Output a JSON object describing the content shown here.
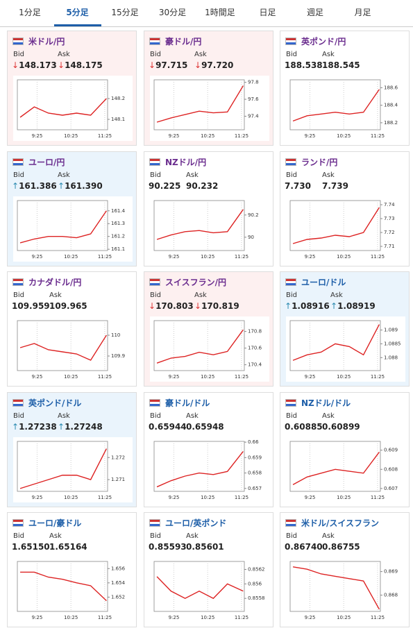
{
  "tabs": {
    "items": [
      "1分足",
      "5分足",
      "15分足",
      "30分足",
      "1時間足",
      "日足",
      "週足",
      "月足"
    ],
    "selected": 1
  },
  "cards": [
    {
      "name": "米ドル/円",
      "bid_label": "Bid",
      "ask_label": "Ask",
      "arrow": "↓",
      "bid": "148.173",
      "ask": "148.175",
      "chart": {
        "type": "line",
        "x": [
          -5,
          20,
          45,
          70,
          95,
          120,
          148
        ],
        "values": [
          148.11,
          148.16,
          148.13,
          148.12,
          148.13,
          148.12,
          148.2
        ],
        "xlim": [
          -10,
          150
        ],
        "ylim": [
          148.05,
          148.29
        ],
        "yticks": [
          148.1,
          148.2
        ],
        "xticks": [
          {
            "value": 25,
            "label": "9:25"
          },
          {
            "value": 85,
            "label": "10:25"
          },
          {
            "value": 145,
            "label": "11:25"
          }
        ]
      }
    },
    {
      "name": "豪ドル/円",
      "bid_label": "Bid",
      "ask_label": "Ask",
      "arrow": "↓",
      "bid": "97.715",
      "ask": "97.720",
      "chart": {
        "type": "line",
        "x": [
          -5,
          20,
          45,
          70,
          95,
          120,
          148
        ],
        "values": [
          97.33,
          97.38,
          97.42,
          97.46,
          97.44,
          97.45,
          97.76
        ],
        "xlim": [
          -10,
          150
        ],
        "ylim": [
          97.24,
          97.83
        ],
        "yticks": [
          97.4,
          97.6,
          97.8
        ],
        "xticks": [
          {
            "value": 25,
            "label": "9:25"
          },
          {
            "value": 85,
            "label": "10:25"
          },
          {
            "value": 145,
            "label": "11:25"
          }
        ]
      }
    },
    {
      "name": "英ポンド/円",
      "bid_label": "Bid",
      "ask_label": "Ask",
      "bid": "188.538",
      "ask": "188.545",
      "chart": {
        "type": "line",
        "x": [
          -5,
          20,
          45,
          70,
          95,
          120,
          148
        ],
        "values": [
          188.22,
          188.28,
          188.3,
          188.32,
          188.3,
          188.32,
          188.58
        ],
        "xlim": [
          -10,
          150
        ],
        "ylim": [
          188.12,
          188.69
        ],
        "yticks": [
          188.2,
          188.4,
          188.6
        ],
        "xticks": [
          {
            "value": 25,
            "label": "9:25"
          },
          {
            "value": 85,
            "label": "10:25"
          },
          {
            "value": 145,
            "label": "11:25"
          }
        ]
      }
    },
    {
      "name": "ユーロ/円",
      "bid_label": "Bid",
      "ask_label": "Ask",
      "arrow": "↑",
      "bid": "161.386",
      "ask": "161.390",
      "chart": {
        "type": "line",
        "x": [
          -5,
          20,
          45,
          70,
          95,
          120,
          148
        ],
        "values": [
          161.15,
          161.18,
          161.2,
          161.2,
          161.19,
          161.22,
          161.4
        ],
        "xlim": [
          -10,
          150
        ],
        "ylim": [
          161.09,
          161.48
        ],
        "yticks": [
          161.1,
          161.2,
          161.3,
          161.4
        ],
        "xticks": [
          {
            "value": 25,
            "label": "9:25"
          },
          {
            "value": 85,
            "label": "10:25"
          },
          {
            "value": 145,
            "label": "11:25"
          }
        ]
      }
    },
    {
      "name": "NZドル/円",
      "bid_label": "Bid",
      "ask_label": "Ask",
      "bid": "90.225",
      "ask": "90.232",
      "chart": {
        "type": "line",
        "x": [
          -5,
          20,
          45,
          70,
          95,
          120,
          148
        ],
        "values": [
          89.98,
          90.02,
          90.05,
          90.06,
          90.04,
          90.05,
          90.25
        ],
        "xlim": [
          -10,
          150
        ],
        "ylim": [
          89.88,
          90.33
        ],
        "yticks": [
          90,
          90.2
        ],
        "xticks": [
          {
            "value": 25,
            "label": "9:25"
          },
          {
            "value": 85,
            "label": "10:25"
          },
          {
            "value": 145,
            "label": "11:25"
          }
        ]
      }
    },
    {
      "name": "ランド/円",
      "bid_label": "Bid",
      "ask_label": "Ask",
      "bid": "7.730",
      "ask": "7.739",
      "chart": {
        "type": "line",
        "x": [
          -5,
          20,
          45,
          70,
          95,
          120,
          148
        ],
        "values": [
          7.712,
          7.715,
          7.716,
          7.718,
          7.717,
          7.72,
          7.738
        ],
        "xlim": [
          -10,
          150
        ],
        "ylim": [
          7.707,
          7.743
        ],
        "yticks": [
          7.71,
          7.72,
          7.73,
          7.74
        ],
        "xticks": [
          {
            "value": 25,
            "label": "9:25"
          },
          {
            "value": 85,
            "label": "10:25"
          },
          {
            "value": 145,
            "label": "11:25"
          }
        ]
      }
    },
    {
      "name": "カナダドル/円",
      "bid_label": "Bid",
      "ask_label": "Ask",
      "bid": "109.959",
      "ask": "109.965",
      "chart": {
        "type": "line",
        "x": [
          -5,
          20,
          45,
          70,
          95,
          120,
          148
        ],
        "values": [
          109.94,
          109.96,
          109.93,
          109.92,
          109.91,
          109.88,
          110.0
        ],
        "xlim": [
          -10,
          150
        ],
        "ylim": [
          109.83,
          110.07
        ],
        "yticks": [
          109.9,
          110
        ],
        "xticks": [
          {
            "value": 25,
            "label": "9:25"
          },
          {
            "value": 85,
            "label": "10:25"
          },
          {
            "value": 145,
            "label": "11:25"
          }
        ]
      }
    },
    {
      "name": "スイスフラン/円",
      "bid_label": "Bid",
      "ask_label": "Ask",
      "arrow": "↓",
      "bid": "170.803",
      "ask": "170.819",
      "chart": {
        "type": "line",
        "x": [
          -5,
          20,
          45,
          70,
          95,
          120,
          148
        ],
        "values": [
          170.42,
          170.48,
          170.5,
          170.55,
          170.52,
          170.56,
          170.82
        ],
        "xlim": [
          -10,
          150
        ],
        "ylim": [
          170.33,
          170.93
        ],
        "yticks": [
          170.4,
          170.6,
          170.8
        ],
        "xticks": [
          {
            "value": 25,
            "label": "9:25"
          },
          {
            "value": 85,
            "label": "10:25"
          },
          {
            "value": 145,
            "label": "11:25"
          }
        ]
      }
    },
    {
      "name": "ユーロ/ドル",
      "bid_label": "Bid",
      "ask_label": "Ask",
      "arrow": "↑",
      "bid": "1.08916",
      "ask": "1.08919",
      "chart": {
        "type": "line",
        "x": [
          -5,
          20,
          45,
          70,
          95,
          120,
          148
        ],
        "values": [
          1.0879,
          1.0881,
          1.0882,
          1.0885,
          1.0884,
          1.0881,
          1.0892
        ],
        "xlim": [
          -10,
          150
        ],
        "ylim": [
          1.08753,
          1.08934
        ],
        "yticks": [
          1.088,
          1.0885,
          1.089
        ],
        "xticks": [
          {
            "value": 25,
            "label": "9:25"
          },
          {
            "value": 85,
            "label": "10:25"
          },
          {
            "value": 145,
            "label": "11:25"
          }
        ]
      }
    },
    {
      "name": "英ポンド/ドル",
      "bid_label": "Bid",
      "ask_label": "Ask",
      "arrow": "↑",
      "bid": "1.27238",
      "ask": "1.27248",
      "chart": {
        "type": "line",
        "x": [
          -5,
          20,
          45,
          70,
          95,
          120,
          148
        ],
        "values": [
          1.2706,
          1.2708,
          1.271,
          1.2712,
          1.2712,
          1.271,
          1.2724
        ],
        "xlim": [
          -10,
          150
        ],
        "ylim": [
          1.27047,
          1.27273
        ],
        "yticks": [
          1.271,
          1.272
        ],
        "xticks": [
          {
            "value": 25,
            "label": "9:25"
          },
          {
            "value": 85,
            "label": "10:25"
          },
          {
            "value": 145,
            "label": "11:25"
          }
        ]
      }
    },
    {
      "name": "豪ドル/ドル",
      "bid_label": "Bid",
      "ask_label": "Ask",
      "bid": "0.65944",
      "ask": "0.65948",
      "chart": {
        "type": "line",
        "x": [
          -5,
          20,
          45,
          70,
          95,
          120,
          148
        ],
        "values": [
          0.6571,
          0.6575,
          0.6578,
          0.658,
          0.6579,
          0.6581,
          0.6594
        ],
        "xlim": [
          -10,
          150
        ],
        "ylim": [
          0.65681,
          0.66005
        ],
        "yticks": [
          0.657,
          0.658,
          0.659,
          0.66
        ],
        "xticks": [
          {
            "value": 25,
            "label": "9:25"
          },
          {
            "value": 85,
            "label": "10:25"
          },
          {
            "value": 145,
            "label": "11:25"
          }
        ]
      }
    },
    {
      "name": "NZドル/ドル",
      "bid_label": "Bid",
      "ask_label": "Ask",
      "bid": "0.60885",
      "ask": "0.60899",
      "chart": {
        "type": "line",
        "x": [
          -5,
          20,
          45,
          70,
          95,
          120,
          148
        ],
        "values": [
          0.6072,
          0.6076,
          0.6078,
          0.608,
          0.6079,
          0.6078,
          0.6089
        ],
        "xlim": [
          -10,
          150
        ],
        "ylim": [
          0.60685,
          0.60946
        ],
        "yticks": [
          0.607,
          0.608,
          0.609
        ],
        "xticks": [
          {
            "value": 25,
            "label": "9:25"
          },
          {
            "value": 85,
            "label": "10:25"
          },
          {
            "value": 145,
            "label": "11:25"
          }
        ]
      }
    },
    {
      "name": "ユーロ/豪ドル",
      "bid_label": "Bid",
      "ask_label": "Ask",
      "bid": "1.65150",
      "ask": "1.65164",
      "chart": {
        "type": "line",
        "x": [
          -5,
          20,
          45,
          70,
          95,
          120,
          148
        ],
        "values": [
          1.6555,
          1.6555,
          1.6548,
          1.6545,
          1.654,
          1.6536,
          1.6515
        ],
        "xlim": [
          -10,
          150
        ],
        "ylim": [
          1.65,
          1.657
        ],
        "yticks": [
          1.652,
          1.654,
          1.656
        ],
        "xticks": [
          {
            "value": 25,
            "label": "9:25"
          },
          {
            "value": 85,
            "label": "10:25"
          },
          {
            "value": 145,
            "label": "11:25"
          }
        ]
      }
    },
    {
      "name": "ユーロ/英ポンド",
      "bid_label": "Bid",
      "ask_label": "Ask",
      "bid": "0.85593",
      "ask": "0.85601",
      "chart": {
        "type": "line",
        "x": [
          -5,
          20,
          45,
          70,
          95,
          120,
          148
        ],
        "values": [
          0.8561,
          0.8559,
          0.8558,
          0.8559,
          0.8558,
          0.856,
          0.8559
        ],
        "xlim": [
          -10,
          150
        ],
        "ylim": [
          0.85562,
          0.85631
        ],
        "yticks": [
          0.8558,
          0.856,
          0.8562
        ],
        "xticks": [
          {
            "value": 25,
            "label": "9:25"
          },
          {
            "value": 85,
            "label": "10:25"
          },
          {
            "value": 145,
            "label": "11:25"
          }
        ]
      }
    },
    {
      "name": "米ドル/スイスフラン",
      "bid_label": "Bid",
      "ask_label": "Ask",
      "bid": "0.86740",
      "ask": "0.86755",
      "chart": {
        "type": "line",
        "x": [
          -5,
          20,
          45,
          70,
          95,
          120,
          148
        ],
        "values": [
          0.8692,
          0.8691,
          0.8689,
          0.8688,
          0.8687,
          0.8686,
          0.8674
        ],
        "xlim": [
          -10,
          150
        ],
        "ylim": [
          0.86731,
          0.86943
        ],
        "yticks": [
          0.868,
          0.869
        ],
        "xticks": [
          {
            "value": 25,
            "label": "9:25"
          },
          {
            "value": 85,
            "label": "10:25"
          },
          {
            "value": 145,
            "label": "11:25"
          }
        ]
      }
    }
  ]
}
